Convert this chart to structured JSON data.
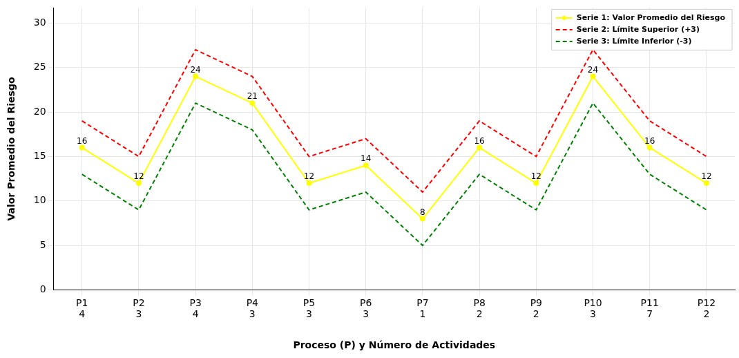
{
  "chart_data": {
    "type": "line",
    "xlabel": "Proceso (P) y Número de Actividades",
    "ylabel": "Valor Promedio del Riesgo",
    "categories": [
      "P1\n4",
      "P2\n3",
      "P3\n4",
      "P4\n3",
      "P5\n3",
      "P6\n3",
      "P7\n1",
      "P8\n2",
      "P9\n2",
      "P10\n3",
      "P11\n7",
      "P12\n2"
    ],
    "series": [
      {
        "name": "Serie 1: Valor Promedio del Riesgo",
        "color": "#ffff00",
        "values": [
          16,
          12,
          24,
          21,
          12,
          14,
          8,
          16,
          12,
          24,
          16,
          12
        ],
        "marker": "circle",
        "line_style": "solid",
        "value_labels": [
          "16",
          "12",
          "24",
          "21",
          "12",
          "14",
          "8",
          "16",
          "12",
          "24",
          "16",
          "12"
        ]
      },
      {
        "name": "Serie 2: Límite Superior (+3)",
        "color": "#ff0000",
        "values": [
          19,
          15,
          27,
          24,
          15,
          17,
          11,
          19,
          15,
          27,
          19,
          15
        ],
        "marker": "none",
        "line_style": "dashed"
      },
      {
        "name": "Serie 3: Límite Inferior (-3)",
        "color": "#008000",
        "values": [
          13,
          9,
          21,
          18,
          9,
          11,
          5,
          13,
          9,
          21,
          13,
          9
        ],
        "marker": "none",
        "line_style": "dashed"
      }
    ],
    "ylim": [
      0,
      31.7
    ],
    "yticks": [
      0,
      5,
      10,
      15,
      20,
      25,
      30
    ],
    "grid": true,
    "legend": "top right"
  }
}
